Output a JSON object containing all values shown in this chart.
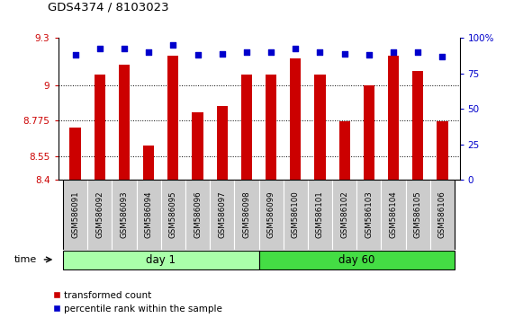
{
  "title": "GDS4374 / 8103023",
  "samples": [
    "GSM586091",
    "GSM586092",
    "GSM586093",
    "GSM586094",
    "GSM586095",
    "GSM586096",
    "GSM586097",
    "GSM586098",
    "GSM586099",
    "GSM586100",
    "GSM586101",
    "GSM586102",
    "GSM586103",
    "GSM586104",
    "GSM586105",
    "GSM586106"
  ],
  "bar_values": [
    8.73,
    9.07,
    9.13,
    8.62,
    9.19,
    8.83,
    8.87,
    9.07,
    9.07,
    9.17,
    9.07,
    8.77,
    9.0,
    9.19,
    9.09,
    8.77
  ],
  "percentile_values": [
    88,
    93,
    93,
    90,
    95,
    88,
    89,
    90,
    90,
    93,
    90,
    89,
    88,
    90,
    90,
    87
  ],
  "bar_color": "#cc0000",
  "percentile_color": "#0000cc",
  "ylim_left": [
    8.4,
    9.3
  ],
  "ylim_right": [
    0,
    100
  ],
  "yticks_left": [
    8.4,
    8.55,
    8.775,
    9.0,
    9.3
  ],
  "ytick_labels_left": [
    "8.4",
    "8.55",
    "8.775",
    "9",
    "9.3"
  ],
  "yticks_right": [
    0,
    25,
    50,
    75,
    100
  ],
  "ytick_labels_right": [
    "0",
    "25",
    "50",
    "75",
    "100%"
  ],
  "day1_samples": 8,
  "day60_samples": 8,
  "day1_label": "day 1",
  "day60_label": "day 60",
  "day1_color": "#aaffaa",
  "day60_color": "#44dd44",
  "time_label": "time",
  "legend_bar_label": "transformed count",
  "legend_pct_label": "percentile rank within the sample",
  "grid_lines": [
    8.55,
    8.775,
    9.0
  ],
  "background_color": "#ffffff",
  "tick_band_color": "#cccccc",
  "bar_width": 0.45
}
